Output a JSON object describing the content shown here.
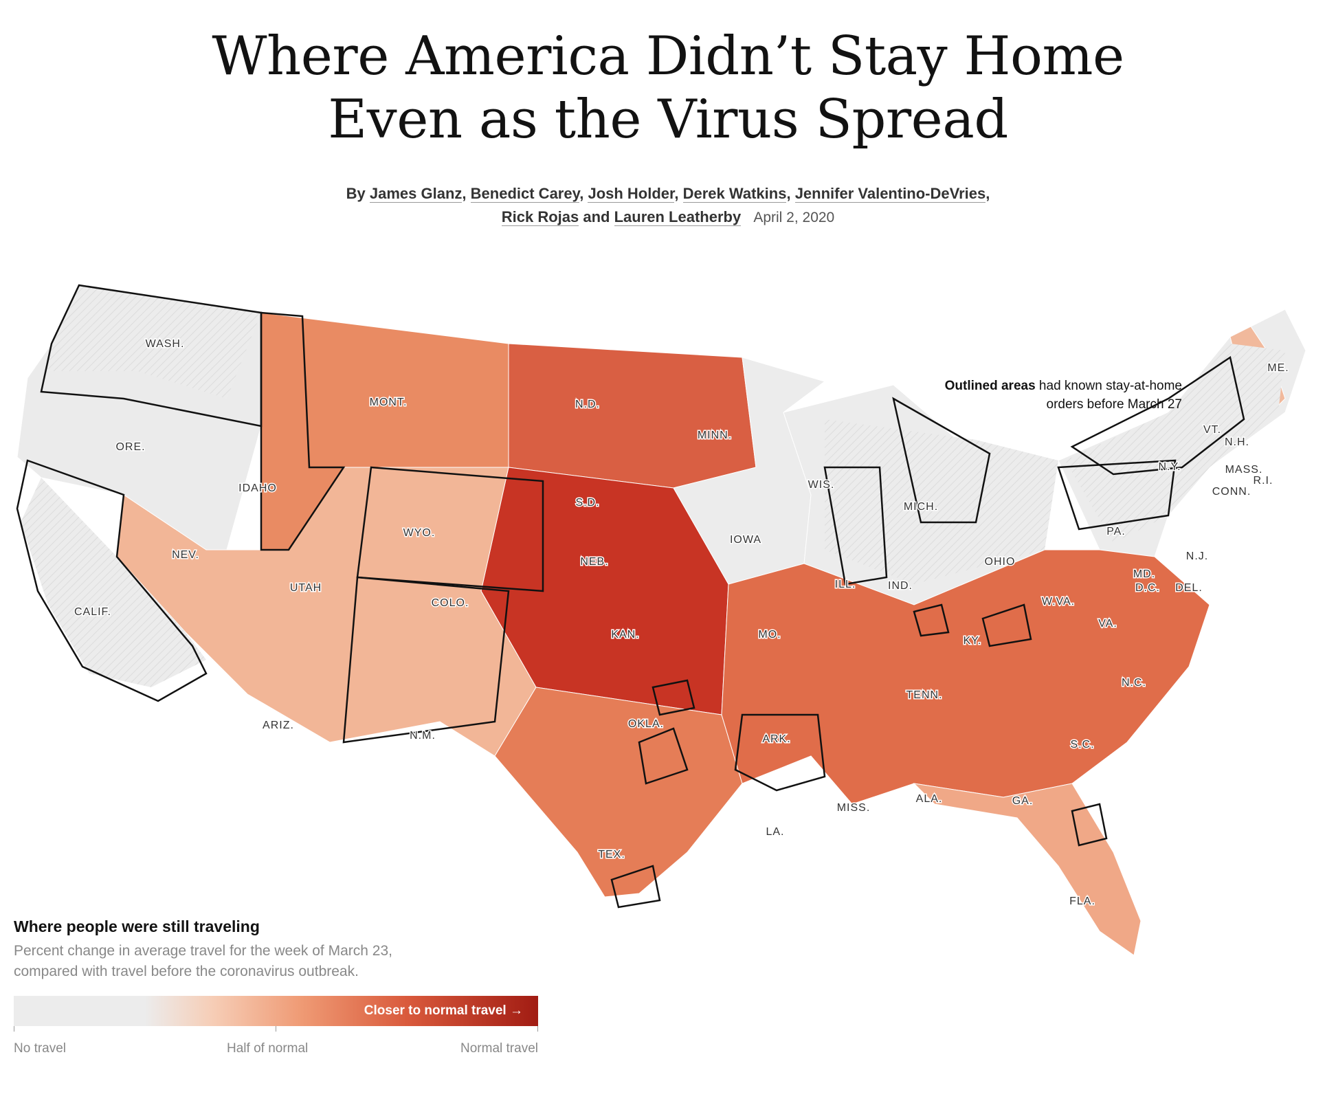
{
  "article": {
    "headline_line1": "Where America Didn’t Stay Home",
    "headline_line2": "Even as the Virus Spread",
    "byline_prefix": "By",
    "authors": [
      "James Glanz",
      "Benedict Carey",
      "Josh Holder",
      "Derek Watkins",
      "Jennifer Valentino-DeVries",
      "Rick Rojas",
      "Lauren Leatherby"
    ],
    "date": "April 2, 2020"
  },
  "annotation": {
    "bold": "Outlined areas",
    "rest": " had known stay-at-home orders before March 27"
  },
  "legend": {
    "title": "Where people were still traveling",
    "description": "Percent change in average travel for the week of March 23, compared with travel before the coronavirus outbreak.",
    "bar_callout": "Closer to normal travel →",
    "low_label": "No travel",
    "mid_label": "Half of normal",
    "high_label": "Normal travel",
    "colors": [
      "#ececec",
      "#f6cdb6",
      "#ef9a74",
      "#d95a3c",
      "#a11c13"
    ]
  },
  "state_labels": [
    "WASH.",
    "ORE.",
    "CALIF.",
    "IDAHO",
    "NEV.",
    "MONT.",
    "WYO.",
    "UTAH",
    "ARIZ.",
    "COLO.",
    "N.M.",
    "N.D.",
    "S.D.",
    "NEB.",
    "KAN.",
    "OKLA.",
    "TEX.",
    "MINN.",
    "IOWA",
    "MO.",
    "ARK.",
    "LA.",
    "WIS.",
    "ILL.",
    "MICH.",
    "IND.",
    "OHIO",
    "KY.",
    "TENN.",
    "MISS.",
    "ALA.",
    "GA.",
    "FLA.",
    "S.C.",
    "N.C.",
    "VA.",
    "W.VA.",
    "PA.",
    "N.Y.",
    "N.J.",
    "MD.",
    "D.C.",
    "DEL.",
    "VT.",
    "N.H.",
    "MASS.",
    "R.I.",
    "CONN.",
    "ME."
  ],
  "map_regions": [
    {
      "name": "pacific-northwest",
      "color": "#ebebeb"
    },
    {
      "name": "northern-rockies",
      "color": "#e98b63"
    },
    {
      "name": "northern-plains",
      "color": "#d95f43"
    },
    {
      "name": "central-plains",
      "color": "#c83424"
    },
    {
      "name": "southwest",
      "color": "#f2b697"
    },
    {
      "name": "texas",
      "color": "#e57d57"
    },
    {
      "name": "upper-midwest",
      "color": "#ececec"
    },
    {
      "name": "great-lakes",
      "color": "#ececec"
    },
    {
      "name": "northeast",
      "color": "#ececec"
    },
    {
      "name": "south",
      "color": "#e06d4a"
    },
    {
      "name": "florida",
      "color": "#f0a887"
    },
    {
      "name": "maine",
      "color": "#f1b99c"
    }
  ]
}
